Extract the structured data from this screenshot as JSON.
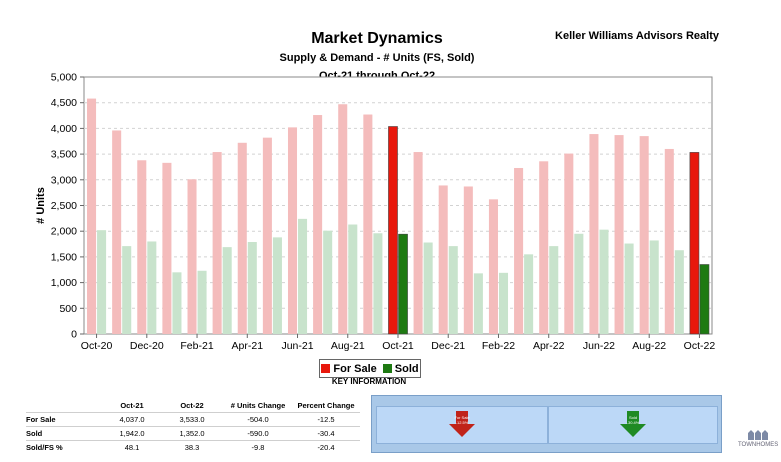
{
  "header": {
    "title": "Market Dynamics",
    "subtitle1": "Supply & Demand - # Units (FS, Sold)",
    "subtitle2": "Oct-21 through Oct-22",
    "company": "Keller Williams Advisors Realty"
  },
  "chart_data": {
    "type": "bar",
    "ylabel": "# Units",
    "ylim": [
      0,
      5000
    ],
    "yticks": [
      "0",
      "500",
      "1,000",
      "1,500",
      "2,000",
      "2,500",
      "3,000",
      "3,500",
      "4,000",
      "4,500",
      "5,000"
    ],
    "grid": true,
    "categories": [
      "Oct-20",
      "Nov-20",
      "Dec-20",
      "Jan-21",
      "Feb-21",
      "Mar-21",
      "Apr-21",
      "May-21",
      "Jun-21",
      "Jul-21",
      "Aug-21",
      "Sep-21",
      "Oct-21",
      "Nov-21",
      "Dec-21",
      "Jan-22",
      "Feb-22",
      "Mar-22",
      "Apr-22",
      "May-22",
      "Jun-22",
      "Jul-22",
      "Aug-22",
      "Sep-22",
      "Oct-22"
    ],
    "xtick_labels": [
      "Oct-20",
      "",
      "Dec-20",
      "",
      "Feb-21",
      "",
      "Apr-21",
      "",
      "Jun-21",
      "",
      "Aug-21",
      "",
      "Oct-21",
      "",
      "Dec-21",
      "",
      "Feb-22",
      "",
      "Apr-22",
      "",
      "Jun-22",
      "",
      "Aug-22",
      "",
      "Oct-22"
    ],
    "highlight_categories": [
      "Oct-21",
      "Oct-22"
    ],
    "series": [
      {
        "name": "For Sale",
        "color": "#f4bcbc",
        "highlight_color": "#e8180c",
        "values": [
          4580,
          3960,
          3380,
          3330,
          3010,
          3540,
          3720,
          3820,
          4020,
          4260,
          4470,
          4270,
          4037,
          3540,
          2890,
          2870,
          2620,
          3230,
          3360,
          3510,
          3890,
          3870,
          3850,
          3600,
          3533
        ]
      },
      {
        "name": "Sold",
        "color": "#c8e3cc",
        "highlight_color": "#1e7a12",
        "values": [
          2020,
          1710,
          1800,
          1200,
          1230,
          1690,
          1790,
          1880,
          2240,
          2010,
          2130,
          1960,
          1942,
          1780,
          1710,
          1180,
          1190,
          1550,
          1710,
          1950,
          2030,
          1760,
          1820,
          1630,
          1352
        ]
      }
    ]
  },
  "legend": {
    "for_sale": "For Sale",
    "sold": "Sold",
    "for_sale_color": "#e8180c",
    "sold_color": "#1e7a12"
  },
  "key_info": "KEY INFORMATION",
  "stats_table": {
    "headers": [
      "",
      "Oct-21",
      "Oct-22",
      "# Units Change",
      "Percent Change"
    ],
    "rows": [
      [
        "For Sale",
        "4,037.0",
        "3,533.0",
        "-504.0",
        "-12.5"
      ],
      [
        "Sold",
        "1,942.0",
        "1,352.0",
        "-590.0",
        "-30.4"
      ],
      [
        "Sold/FS %",
        "48.1",
        "38.3",
        "-9.8",
        "-20.4"
      ]
    ]
  },
  "kpi": {
    "for_sale_label": "For Sale",
    "for_sale_pct": "-12.5%",
    "for_sale_arrow_color": "#c0231a",
    "sold_label": "Sold",
    "sold_pct": "-30.4%",
    "sold_arrow_color": "#1f8a24"
  },
  "logo_text": "TOWNHOMES"
}
